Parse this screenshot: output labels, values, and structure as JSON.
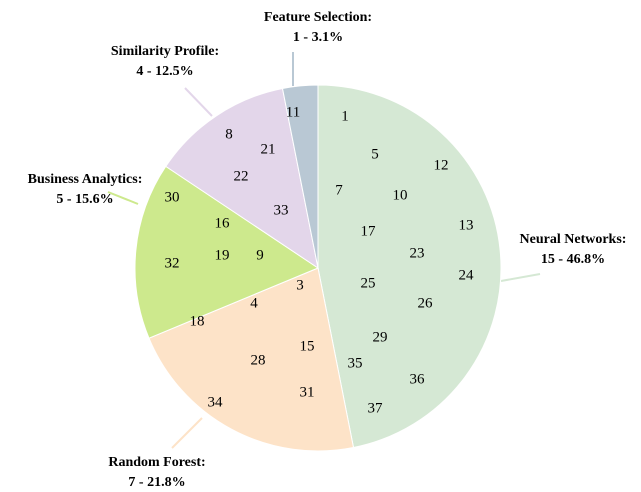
{
  "chart_data": {
    "type": "pie",
    "categories": [
      "Neural Networks:",
      "Random Forest:",
      "Business Analytics:",
      "Similarity Profile:",
      "Feature Selection:"
    ],
    "values": [
      46.8,
      21.8,
      15.6,
      12.5,
      3.1
    ],
    "value_labels": [
      "15 - 46.8%",
      "7 - 21.8%",
      "5 - 15.6%",
      "4 - 12.5%",
      "1 - 3.1%"
    ],
    "colors": [
      "#d5e8d4",
      "#fde3c8",
      "#cde98d",
      "#e3d6ea",
      "#b9c8d4"
    ],
    "members": [
      [
        1,
        5,
        12,
        7,
        10,
        13,
        17,
        23,
        24,
        25,
        26,
        29,
        35,
        36,
        37
      ],
      [
        3,
        4,
        18,
        15,
        28,
        31,
        34
      ],
      [
        30,
        16,
        32,
        19,
        9
      ],
      [
        8,
        21,
        22,
        33
      ],
      [
        11
      ]
    ]
  }
}
